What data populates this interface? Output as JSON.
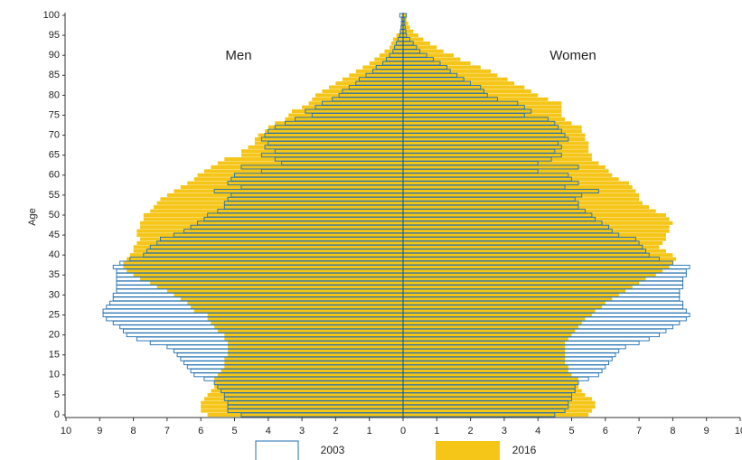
{
  "chart_data": {
    "type": "pyramid",
    "y_axis_label": "Age",
    "panel_labels": [
      "Men",
      "Women"
    ],
    "xlim": [
      0,
      10
    ],
    "xticks": [
      0,
      1,
      2,
      3,
      4,
      5,
      6,
      7,
      8,
      9,
      10
    ],
    "categories": [
      0,
      null,
      null,
      null,
      null,
      5,
      null,
      null,
      null,
      null,
      10,
      null,
      null,
      null,
      null,
      15,
      null,
      null,
      null,
      null,
      20,
      null,
      null,
      null,
      null,
      25,
      null,
      null,
      null,
      null,
      30,
      null,
      null,
      null,
      null,
      35,
      null,
      null,
      null,
      null,
      40,
      null,
      null,
      null,
      null,
      45,
      null,
      null,
      null,
      null,
      50,
      null,
      null,
      null,
      null,
      55,
      null,
      null,
      null,
      null,
      60,
      null,
      null,
      null,
      null,
      65,
      null,
      null,
      null,
      null,
      70,
      null,
      null,
      null,
      null,
      75,
      null,
      null,
      null,
      null,
      80,
      null,
      null,
      null,
      null,
      85,
      null,
      null,
      null,
      null,
      90,
      null,
      null,
      null,
      null,
      95,
      null,
      null,
      null,
      null,
      100
    ],
    "series": [
      {
        "name": "2016",
        "color": "#f5c518",
        "style": "filled",
        "men": [
          5.8,
          6.0,
          6.0,
          6.0,
          5.9,
          5.8,
          5.7,
          5.6,
          5.6,
          5.6,
          5.5,
          5.4,
          5.3,
          5.3,
          5.3,
          5.2,
          5.2,
          5.2,
          5.2,
          5.3,
          5.3,
          5.5,
          5.6,
          5.7,
          5.8,
          5.8,
          6.2,
          6.3,
          6.4,
          6.6,
          6.8,
          7.0,
          7.3,
          7.5,
          7.8,
          8.0,
          8.2,
          8.3,
          8.3,
          8.2,
          8.1,
          8.0,
          8.0,
          7.9,
          7.8,
          7.9,
          7.9,
          7.8,
          7.8,
          7.7,
          7.7,
          7.5,
          7.4,
          7.3,
          7.2,
          7.0,
          6.8,
          6.6,
          6.4,
          6.2,
          6.1,
          5.9,
          5.7,
          5.5,
          5.3,
          4.8,
          4.8,
          4.6,
          4.4,
          4.4,
          4.3,
          4.1,
          4.0,
          3.8,
          3.5,
          3.4,
          3.3,
          3.0,
          2.8,
          2.7,
          2.6,
          2.4,
          2.2,
          2.0,
          1.8,
          1.6,
          1.4,
          1.2,
          1.0,
          0.85,
          0.7,
          0.55,
          0.4,
          0.35,
          0.3,
          0.2,
          0.1,
          0.08,
          0.06,
          0.05,
          0.05
        ],
        "women": [
          5.5,
          5.6,
          5.7,
          5.7,
          5.6,
          5.4,
          5.3,
          5.2,
          5.2,
          5.2,
          5.0,
          4.9,
          4.9,
          4.8,
          4.8,
          4.8,
          4.8,
          4.8,
          4.8,
          4.9,
          5.0,
          5.1,
          5.2,
          5.3,
          5.4,
          5.6,
          5.7,
          5.9,
          6.0,
          6.2,
          6.4,
          6.6,
          6.8,
          7.0,
          7.2,
          7.5,
          7.7,
          7.9,
          8.0,
          8.1,
          8.0,
          7.8,
          7.6,
          7.7,
          7.8,
          7.8,
          7.9,
          7.9,
          8.0,
          7.9,
          7.8,
          7.5,
          7.3,
          7.1,
          7.0,
          7.0,
          6.9,
          6.8,
          6.7,
          6.4,
          6.2,
          6.1,
          6.0,
          5.8,
          5.6,
          5.6,
          5.5,
          5.5,
          5.5,
          5.4,
          5.4,
          5.3,
          5.3,
          5.0,
          4.8,
          4.7,
          4.7,
          4.7,
          4.7,
          4.3,
          4.0,
          3.8,
          3.6,
          3.3,
          3.1,
          2.8,
          2.6,
          2.3,
          2.0,
          1.7,
          1.5,
          1.2,
          1.0,
          0.8,
          0.6,
          0.45,
          0.3,
          0.2,
          0.15,
          0.1,
          0.1
        ]
      },
      {
        "name": "2003",
        "color": "#1f6fb0",
        "style": "outline",
        "men": [
          4.8,
          5.2,
          5.2,
          5.2,
          5.3,
          5.3,
          5.4,
          5.5,
          5.6,
          5.9,
          6.2,
          6.3,
          6.4,
          6.5,
          6.6,
          6.7,
          6.8,
          7.0,
          7.5,
          7.9,
          8.2,
          8.3,
          8.4,
          8.6,
          8.8,
          8.9,
          8.9,
          8.8,
          8.7,
          8.6,
          8.6,
          8.5,
          8.5,
          8.5,
          8.5,
          8.5,
          8.5,
          8.6,
          8.4,
          8.1,
          7.7,
          7.6,
          7.5,
          7.3,
          7.2,
          6.8,
          6.5,
          6.3,
          6.1,
          5.9,
          5.8,
          5.5,
          5.3,
          5.3,
          5.2,
          5.1,
          5.6,
          4.8,
          5.2,
          5.1,
          5.0,
          4.2,
          4.8,
          3.6,
          3.8,
          4.2,
          3.8,
          4.1,
          4.0,
          4.2,
          4.1,
          4.0,
          3.8,
          3.5,
          3.2,
          2.7,
          2.9,
          2.6,
          2.4,
          2.1,
          1.9,
          1.8,
          1.6,
          1.4,
          1.3,
          1.1,
          0.9,
          0.8,
          0.6,
          0.5,
          0.4,
          0.3,
          0.25,
          0.2,
          0.15,
          0.1,
          0.08,
          0.06,
          0.05,
          0.05,
          0.1
        ],
        "women": [
          4.5,
          4.8,
          4.9,
          4.9,
          5.0,
          5.0,
          5.1,
          5.1,
          5.2,
          5.5,
          5.8,
          5.9,
          6.0,
          6.1,
          6.2,
          6.3,
          6.4,
          6.6,
          7.0,
          7.3,
          7.6,
          7.8,
          8.0,
          8.2,
          8.4,
          8.5,
          8.4,
          8.3,
          8.3,
          8.2,
          8.2,
          8.2,
          8.3,
          8.3,
          8.3,
          8.4,
          8.4,
          8.5,
          8.0,
          7.6,
          7.3,
          7.2,
          7.1,
          7.0,
          6.9,
          6.4,
          6.2,
          6.1,
          5.9,
          5.7,
          5.6,
          5.4,
          5.2,
          5.2,
          5.1,
          5.3,
          5.8,
          4.8,
          5.2,
          5.0,
          4.9,
          4.0,
          5.2,
          4.0,
          4.4,
          4.7,
          4.5,
          4.7,
          4.6,
          4.9,
          4.8,
          4.7,
          4.6,
          4.5,
          4.3,
          3.6,
          3.8,
          3.6,
          3.4,
          2.8,
          2.5,
          2.4,
          2.3,
          2.0,
          1.8,
          1.6,
          1.4,
          1.3,
          1.1,
          0.9,
          0.7,
          0.5,
          0.4,
          0.3,
          0.2,
          0.1,
          0.08,
          0.06,
          0.05,
          0.05,
          0.1
        ]
      }
    ]
  }
}
